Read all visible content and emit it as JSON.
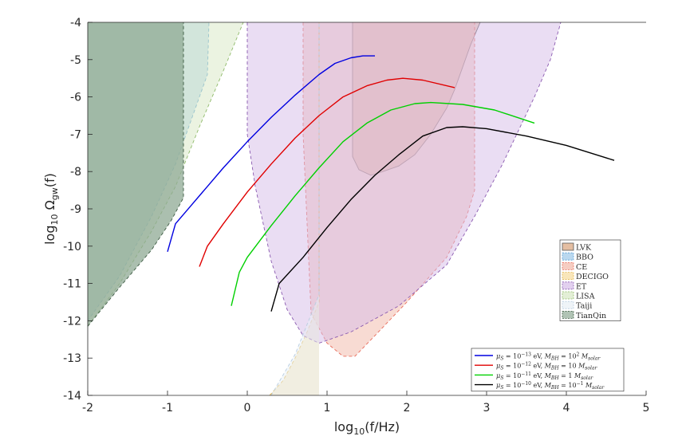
{
  "chart_data": {
    "type": "area",
    "xlabel": "log10(f/Hz)",
    "ylabel": "log10 Ωgw(f)",
    "xlim": [
      -2,
      5
    ],
    "ylim": [
      -14,
      -4
    ],
    "grid": false,
    "x_ticks": [
      "-2",
      "-1",
      "0",
      "1",
      "2",
      "3",
      "4",
      "5"
    ],
    "y_ticks": [
      "-4",
      "-5",
      "-6",
      "-7",
      "-8",
      "-9",
      "-10",
      "-11",
      "-12",
      "-13",
      "-14"
    ],
    "detectors": [
      {
        "name": "LVK",
        "fill": "#d9a37a",
        "stroke": "#595959",
        "boundary": [
          [
            1.32,
            -4
          ],
          [
            1.32,
            -7.6
          ],
          [
            1.4,
            -7.95
          ],
          [
            1.55,
            -8.1
          ],
          [
            1.7,
            -8.0
          ],
          [
            1.9,
            -7.85
          ],
          [
            2.1,
            -7.55
          ],
          [
            2.3,
            -7.0
          ],
          [
            2.5,
            -6.3
          ],
          [
            2.6,
            -5.8
          ],
          [
            2.7,
            -5.2
          ],
          [
            2.8,
            -4.6
          ],
          [
            2.92,
            -4.0
          ]
        ]
      },
      {
        "name": "BBO",
        "fill": "#9cc8e8",
        "stroke": "#5a9fd4",
        "boundary": [
          [
            -2,
            -12.0
          ],
          [
            -1.6,
            -10.8
          ],
          [
            -1.2,
            -9.2
          ],
          [
            -0.9,
            -7.8
          ],
          [
            -0.65,
            -6.3
          ],
          [
            -0.5,
            -5.4
          ],
          [
            -0.48,
            -4.0
          ]
        ]
      },
      {
        "name": "CE",
        "fill": "#f2b8a8",
        "stroke": "#e86b5a",
        "boundary": [
          [
            0.7,
            -4
          ],
          [
            0.7,
            -7.0
          ],
          [
            0.8,
            -11.8
          ],
          [
            1.0,
            -12.6
          ],
          [
            1.2,
            -12.95
          ],
          [
            1.35,
            -12.95
          ],
          [
            1.6,
            -12.4
          ],
          [
            2.0,
            -11.5
          ],
          [
            2.5,
            -10.3
          ],
          [
            2.75,
            -9.2
          ],
          [
            2.85,
            -8.5
          ],
          [
            2.85,
            -4.0
          ]
        ]
      },
      {
        "name": "DECIGO",
        "fill": "#f7dc9c",
        "stroke": "#e3b44a",
        "boundary": [
          [
            0.28,
            -14
          ],
          [
            0.45,
            -13.6
          ],
          [
            0.6,
            -13.0
          ],
          [
            0.75,
            -12.3
          ],
          [
            0.9,
            -11.5
          ],
          [
            0.9,
            -4.0
          ]
        ]
      },
      {
        "name": "ET",
        "fill": "#d6bce8",
        "stroke": "#8a5ab0",
        "boundary": [
          [
            0,
            -4
          ],
          [
            0,
            -7.0
          ],
          [
            0.1,
            -8.4
          ],
          [
            0.3,
            -10.4
          ],
          [
            0.5,
            -11.7
          ],
          [
            0.7,
            -12.4
          ],
          [
            0.9,
            -12.6
          ],
          [
            1.3,
            -12.3
          ],
          [
            1.9,
            -11.6
          ],
          [
            2.5,
            -10.5
          ],
          [
            2.85,
            -9.2
          ],
          [
            3.2,
            -7.8
          ],
          [
            3.6,
            -6.0
          ],
          [
            3.8,
            -5.0
          ],
          [
            3.93,
            -4.0
          ]
        ]
      },
      {
        "name": "LISA",
        "fill": "#d7e8c4",
        "stroke": "#8fba6a",
        "boundary": [
          [
            -2,
            -12.15
          ],
          [
            -1.6,
            -11.0
          ],
          [
            -1.2,
            -9.6
          ],
          [
            -0.9,
            -8.4
          ],
          [
            -0.6,
            -6.8
          ],
          [
            -0.3,
            -5.3
          ],
          [
            -0.05,
            -4.0
          ]
        ]
      },
      {
        "name": "Taiji",
        "fill": "#e8f0f5",
        "stroke": "#b8cde0",
        "boundary": [
          [
            0.3,
            -14
          ],
          [
            0.6,
            -12.9
          ],
          [
            0.9,
            -11.3
          ],
          [
            0.9,
            -4.0
          ]
        ]
      },
      {
        "name": "TianQin",
        "fill": "#8faa94",
        "stroke": "#3c5a42",
        "boundary": [
          [
            -2,
            -12.15
          ],
          [
            -1.6,
            -11.1
          ],
          [
            -1.2,
            -10.1
          ],
          [
            -0.95,
            -9.3
          ],
          [
            -0.8,
            -8.7
          ],
          [
            -0.8,
            -4.0
          ]
        ]
      }
    ],
    "series": [
      {
        "name": "μS = 10^−13 eV, MBH = 10^2 Msolar",
        "color": "#0000e0",
        "x": [
          -1.0,
          -0.9,
          -0.7,
          -0.5,
          -0.3,
          0.0,
          0.3,
          0.6,
          0.9,
          1.1,
          1.3,
          1.45,
          1.6
        ],
        "y": [
          -10.15,
          -9.4,
          -8.9,
          -8.4,
          -7.9,
          -7.2,
          -6.55,
          -5.95,
          -5.4,
          -5.1,
          -4.95,
          -4.9,
          -4.9
        ]
      },
      {
        "name": "μS = 10^−12 eV, MBH = 10 Msolar",
        "color": "#e00000",
        "x": [
          -0.6,
          -0.5,
          -0.3,
          0.0,
          0.3,
          0.6,
          0.9,
          1.2,
          1.5,
          1.75,
          1.95,
          2.2,
          2.6
        ],
        "y": [
          -10.55,
          -10.0,
          -9.4,
          -8.55,
          -7.8,
          -7.1,
          -6.5,
          -6.0,
          -5.7,
          -5.55,
          -5.5,
          -5.55,
          -5.75
        ]
      },
      {
        "name": "μS = 10^−11 eV, MBH = 1 Msolar",
        "color": "#00d000",
        "x": [
          -0.2,
          -0.1,
          0.0,
          0.3,
          0.6,
          0.9,
          1.2,
          1.5,
          1.8,
          2.1,
          2.3,
          2.7,
          3.1,
          3.6
        ],
        "y": [
          -11.6,
          -10.7,
          -10.3,
          -9.45,
          -8.65,
          -7.9,
          -7.2,
          -6.7,
          -6.35,
          -6.18,
          -6.15,
          -6.2,
          -6.35,
          -6.7
        ]
      },
      {
        "name": "μS = 10^−10 eV, MBH = 10^−1 Msolar",
        "color": "#000000",
        "x": [
          0.3,
          0.4,
          0.7,
          1.0,
          1.3,
          1.6,
          1.9,
          2.2,
          2.5,
          2.7,
          3.0,
          3.5,
          4.0,
          4.6
        ],
        "y": [
          -11.75,
          -11.0,
          -10.3,
          -9.5,
          -8.75,
          -8.1,
          -7.55,
          -7.05,
          -6.82,
          -6.8,
          -6.85,
          -7.05,
          -7.3,
          -7.7
        ]
      }
    ],
    "detector_legend_position": "right",
    "series_legend_position": "bottom-right"
  }
}
